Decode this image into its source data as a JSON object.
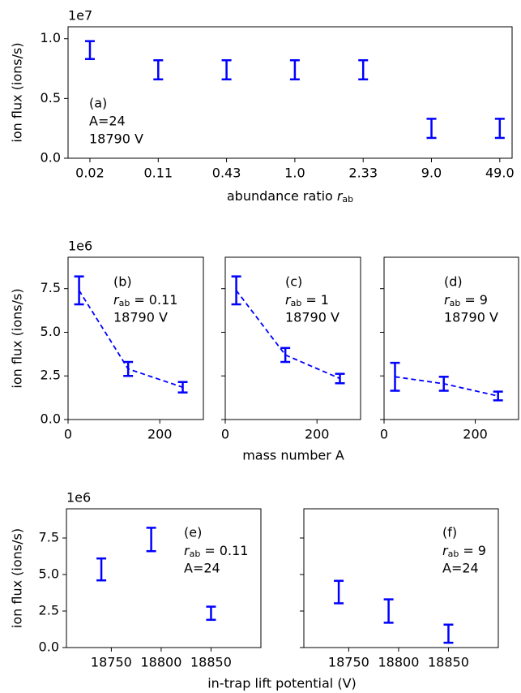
{
  "chart_data": [
    {
      "type": "errorbar",
      "color": "#0000ff",
      "y_offset_label": "1e7",
      "ylabel": "ion flux (ions/s)",
      "xlabel": {
        "text": "abundance ratio",
        "var": "r",
        "sub": "ab"
      },
      "categories": [
        "0.02",
        "0.11",
        "0.43",
        "1.0",
        "2.33",
        "9.0",
        "49.0"
      ],
      "values": [
        0.905,
        0.74,
        0.74,
        0.74,
        0.74,
        0.25,
        0.25
      ],
      "errors": [
        0.075,
        0.08,
        0.08,
        0.08,
        0.08,
        0.08,
        0.08
      ],
      "ylim": [
        0,
        1.1
      ],
      "yticks": [
        {
          "value": 0,
          "label": "0.0"
        },
        0.5,
        {
          "value": 1,
          "label": "1.0"
        }
      ],
      "annotation": [
        "(a)",
        "A=24",
        "18790 V"
      ]
    },
    {
      "type": "errorbar",
      "color": "#0000ff",
      "line": "dashed",
      "y_offset_label": "1e6",
      "ylabel": "ion flux (ions/s)",
      "x": [
        24,
        131,
        250
      ],
      "values": [
        7.4,
        2.9,
        1.85
      ],
      "errors": [
        0.8,
        0.4,
        0.3
      ],
      "xlim": [
        0,
        295
      ],
      "xticks": [
        0,
        200
      ],
      "ylim": [
        0,
        9.3
      ],
      "yticks": [
        {
          "value": 0,
          "label": "0.0"
        },
        2.5,
        {
          "value": 5,
          "label": "5.0"
        },
        7.5
      ],
      "annotation": [
        "(b)",
        {
          "var": "r",
          "sub": "ab",
          "rest": "= 0.11"
        },
        "18790 V"
      ]
    },
    {
      "type": "errorbar",
      "color": "#0000ff",
      "line": "dashed",
      "xlabel": "mass number A",
      "x": [
        24,
        131,
        250
      ],
      "values": [
        7.4,
        3.7,
        2.35
      ],
      "errors": [
        0.8,
        0.4,
        0.27
      ],
      "xlim": [
        0,
        295
      ],
      "xticks": [
        0,
        200
      ],
      "ylim": [
        0,
        9.3
      ],
      "yticks": [
        0,
        2.5,
        5,
        7.5
      ],
      "ytick_labels": false,
      "annotation": [
        "(c)",
        {
          "var": "r",
          "sub": "ab",
          "rest": "= 1"
        },
        "18790 V"
      ]
    },
    {
      "type": "errorbar",
      "color": "#0000ff",
      "line": "dashed",
      "x": [
        24,
        131,
        250
      ],
      "values": [
        2.45,
        2.05,
        1.35
      ],
      "errors": [
        0.8,
        0.4,
        0.25
      ],
      "xlim": [
        0,
        295
      ],
      "xticks": [
        0,
        200
      ],
      "ylim": [
        0,
        9.3
      ],
      "yticks": [
        0,
        2.5,
        5,
        7.5
      ],
      "ytick_labels": false,
      "annotation": [
        "(d)",
        {
          "var": "r",
          "sub": "ab",
          "rest": "= 9"
        },
        "18790 V"
      ]
    },
    {
      "type": "errorbar",
      "color": "#0000ff",
      "y_offset_label": "1e6",
      "ylabel": "ion flux (ions/s)",
      "xlabel": "in-trap lift potential (V)",
      "x": [
        18740,
        18790,
        18850
      ],
      "values": [
        5.35,
        7.4,
        2.35
      ],
      "errors": [
        0.75,
        0.8,
        0.45
      ],
      "xlim": [
        18705,
        18900
      ],
      "xticks": [
        18750,
        18800,
        18850
      ],
      "ylim": [
        0,
        9.5
      ],
      "yticks": [
        {
          "value": 0,
          "label": "0.0"
        },
        2.5,
        {
          "value": 5,
          "label": "5.0"
        },
        7.5
      ],
      "annotation": [
        "(e)",
        {
          "var": "r",
          "sub": "ab",
          "rest": "= 0.11"
        },
        "A=24"
      ]
    },
    {
      "type": "errorbar",
      "color": "#0000ff",
      "x": [
        18740,
        18790,
        18850
      ],
      "values": [
        3.8,
        2.5,
        0.95
      ],
      "errors": [
        0.77,
        0.8,
        0.62
      ],
      "xlim": [
        18705,
        18900
      ],
      "xticks": [
        18750,
        18800,
        18850
      ],
      "ylim": [
        0,
        9.5
      ],
      "yticks": [
        0,
        2.5,
        5,
        7.5
      ],
      "ytick_labels": false,
      "annotation": [
        "(f)",
        {
          "var": "r",
          "sub": "ab",
          "rest": "= 9"
        },
        "A=24"
      ]
    }
  ]
}
